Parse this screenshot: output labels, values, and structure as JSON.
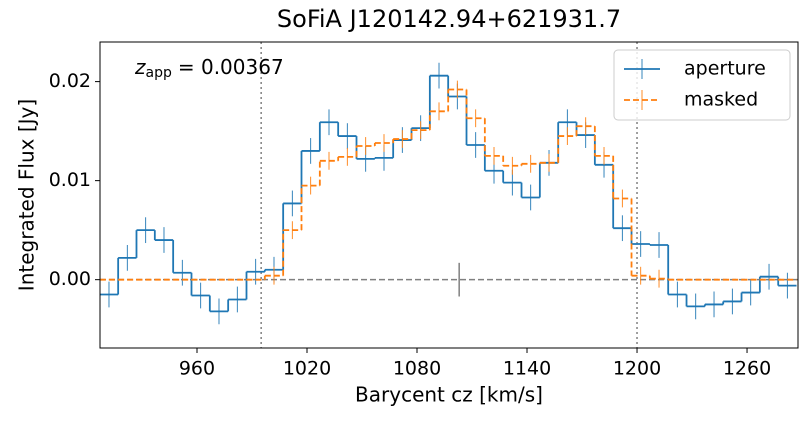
{
  "chart_data": {
    "type": "step",
    "title": "SoFiA J120142.94+621931.7",
    "xlabel": "Barycent cz [km/s]",
    "ylabel": "Integrated Flux [Jy]",
    "annotation": {
      "symbol": "z",
      "subscript": "app",
      "text": "= 0.00367"
    },
    "x": [
      912,
      922,
      932,
      942,
      952,
      962,
      972,
      982,
      992,
      1002,
      1012,
      1022,
      1032,
      1042,
      1052,
      1062,
      1072,
      1082,
      1092,
      1102,
      1112,
      1122,
      1132,
      1142,
      1152,
      1162,
      1172,
      1182,
      1192,
      1202,
      1212,
      1222,
      1232,
      1242,
      1252,
      1262,
      1272,
      1282
    ],
    "series": [
      {
        "name": "aperture",
        "color": "#1f77b4",
        "dashed": false,
        "values": [
          -0.0015,
          0.0022,
          0.005,
          0.004,
          0.0007,
          -0.0016,
          -0.0032,
          -0.002,
          0.0008,
          0.001,
          0.0077,
          0.013,
          0.0159,
          0.0145,
          0.0122,
          0.0123,
          0.0141,
          0.0153,
          0.0206,
          0.0185,
          0.0136,
          0.011,
          0.0098,
          0.0083,
          0.0118,
          0.0159,
          0.0146,
          0.0116,
          0.0052,
          0.0036,
          0.0035,
          -0.0015,
          -0.0027,
          -0.0025,
          -0.0022,
          -0.0013,
          0.0003,
          -0.0006
        ],
        "errors": [
          0.0013,
          0.0013,
          0.0013,
          0.0013,
          0.0013,
          0.0013,
          0.0013,
          0.0013,
          0.0013,
          0.0013,
          0.0013,
          0.0013,
          0.0013,
          0.0013,
          0.0013,
          0.0013,
          0.0013,
          0.0013,
          0.0013,
          0.0013,
          0.0013,
          0.0013,
          0.0013,
          0.0013,
          0.0013,
          0.0013,
          0.0013,
          0.0013,
          0.0013,
          0.0013,
          0.0013,
          0.0013,
          0.0013,
          0.0013,
          0.0013,
          0.0013,
          0.0013,
          0.0013
        ]
      },
      {
        "name": "masked",
        "color": "#ff7f0e",
        "dashed": true,
        "values": [
          0,
          0,
          0,
          0,
          0,
          0,
          0,
          0,
          0,
          0.0004,
          0.005,
          0.0095,
          0.012,
          0.0124,
          0.0135,
          0.0138,
          0.0142,
          0.0151,
          0.017,
          0.0192,
          0.0163,
          0.0125,
          0.0115,
          0.0117,
          0.0118,
          0.0145,
          0.0155,
          0.0125,
          0.0082,
          0.0004,
          0.0001,
          0,
          0,
          0,
          0,
          0,
          0,
          0
        ],
        "errors": [
          null,
          null,
          null,
          null,
          null,
          null,
          null,
          null,
          null,
          0.0009,
          0.0009,
          0.0009,
          0.0009,
          0.0009,
          0.0009,
          0.0009,
          0.0009,
          0.0009,
          0.0009,
          0.0009,
          0.0009,
          0.0009,
          0.0009,
          0.0009,
          0.0009,
          0.0009,
          0.0009,
          0.0009,
          0.0009,
          0.0009,
          0.0009,
          null,
          null,
          null,
          null,
          null,
          null,
          null
        ]
      }
    ],
    "vlines": [
      995,
      1200
    ],
    "hline": 0,
    "center_marker": {
      "x": 1103,
      "half_height": 0.0017
    },
    "xlim": [
      907.1,
      1287.8
    ],
    "ylim": [
      -0.0069,
      0.024
    ],
    "xticks": [
      960,
      1020,
      1080,
      1140,
      1200,
      1260
    ],
    "yticks": [
      {
        "value": 0,
        "label": "0.00"
      },
      {
        "value": 0.01,
        "label": "0.01"
      },
      {
        "value": 0.02,
        "label": "0.02"
      }
    ],
    "legend": "upper right"
  }
}
